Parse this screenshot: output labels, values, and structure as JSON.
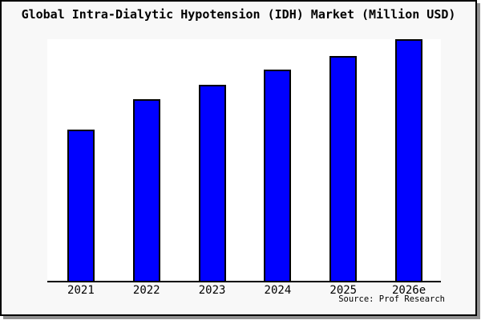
{
  "chart_data": {
    "type": "bar",
    "title": "Global Intra-Dialytic Hypotension (IDH) Market (Million USD)",
    "categories": [
      "2021",
      "2022",
      "2023",
      "2024",
      "2025",
      "2026e"
    ],
    "values": [
      62.6,
      75.0,
      81.1,
      87.4,
      93.0,
      100
    ],
    "xlabel": "",
    "ylabel": "",
    "ylim": [
      0,
      100
    ],
    "grid": false,
    "legend": "none",
    "bar_fill_color": "#0000ff",
    "bar_border_color": "#000000",
    "background_color": "#f8f8f8",
    "plot_background_color": "#ffffff",
    "source": "Source: Prof Research"
  }
}
